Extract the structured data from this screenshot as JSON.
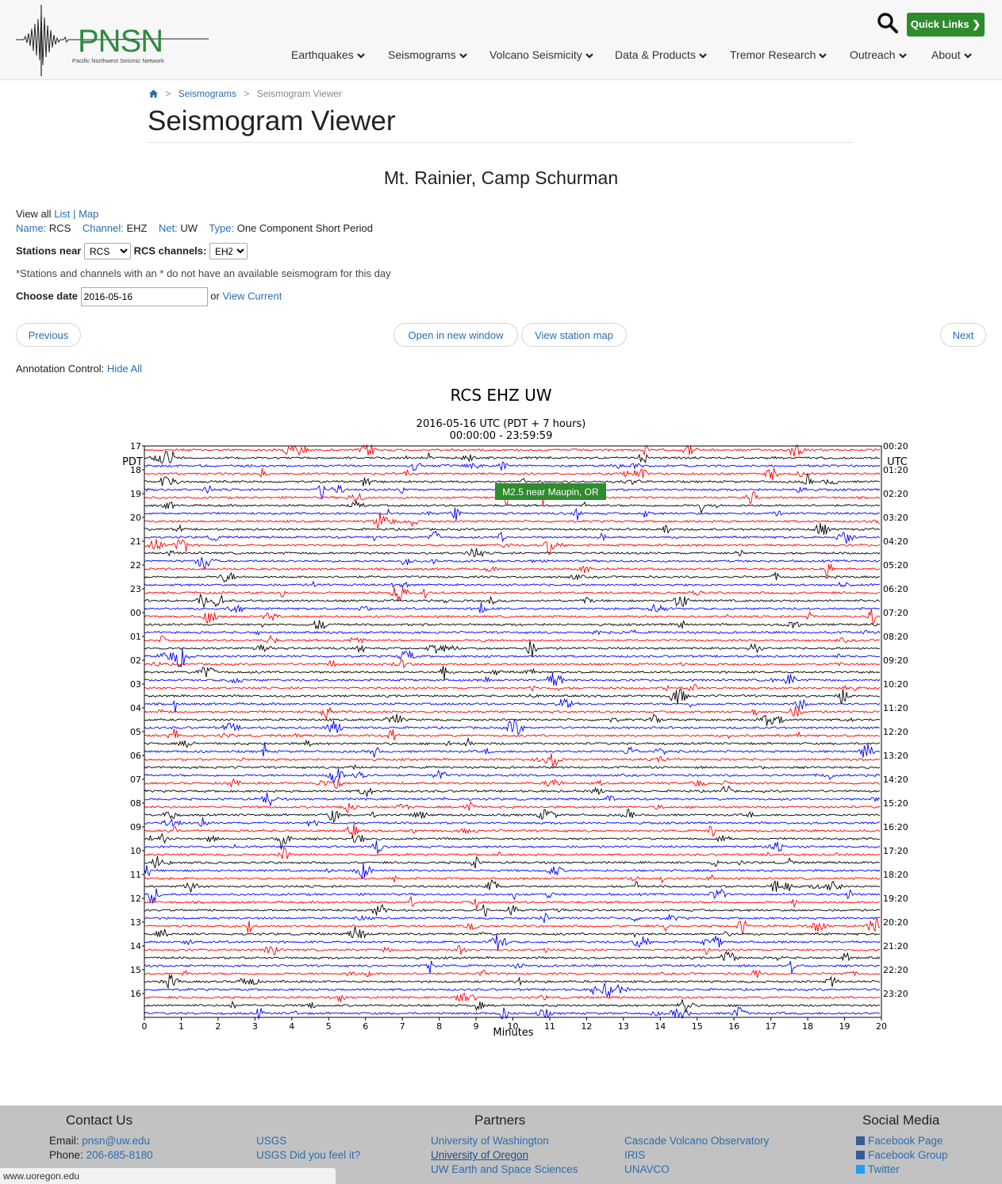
{
  "header": {
    "logo_text": "PNSN",
    "logo_subtitle": "Pacific Northwest Seismic Network",
    "quick_links_label": "Quick Links",
    "nav": [
      "Earthquakes",
      "Seismograms",
      "Volcano Seismicity",
      "Data & Products",
      "Tremor Research",
      "Outreach",
      "About"
    ]
  },
  "breadcrumb": {
    "home_icon": "home-icon",
    "items": [
      "Seismograms",
      "Seismogram Viewer"
    ]
  },
  "page_title": "Seismogram Viewer",
  "station_title": "Mt. Rainier, Camp Schurman",
  "info": {
    "view_all_label": "View all",
    "list_link": "List",
    "pipe": "|",
    "map_link": "Map",
    "name_label": "Name:",
    "name_value": "RCS",
    "channel_label": "Channel:",
    "channel_value": "EHZ",
    "net_label": "Net:",
    "net_value": "UW",
    "type_label": "Type:",
    "type_value": "One Component Short Period",
    "stations_near_label": "Stations near",
    "stations_near_value": "RCS",
    "channels_label": "RCS channels:",
    "channels_value": "EHZ",
    "footnote": "*Stations and channels with an * do not have an available seismogram for this day",
    "choose_date_label": "Choose date",
    "date_value": "2016-05-16",
    "or_label": "or",
    "view_current_link": "View Current"
  },
  "buttons": {
    "previous": "Previous",
    "open_new_window": "Open in new window",
    "view_station_map": "View station map",
    "next": "Next"
  },
  "annotation": {
    "label": "Annotation Control:",
    "hide_all": "Hide All"
  },
  "plot": {
    "title": "RCS EHZ UW",
    "subtitle1": "2016-05-16 UTC (PDT + 7 hours)",
    "subtitle2": "00:00:00 - 23:59:59",
    "left_axis_label": "PDT",
    "right_axis_label": "UTC",
    "xlabel": "Minutes",
    "event_annotation": "M2.5 near Maupin, OR"
  },
  "chart_data": {
    "type": "line",
    "title": "RCS EHZ UW",
    "xlabel": "Minutes",
    "ylabel": "",
    "xlim": [
      0,
      20
    ],
    "x_ticks": [
      "0",
      "1",
      "2",
      "3",
      "4",
      "5",
      "6",
      "7",
      "8",
      "9",
      "10",
      "11",
      "12",
      "13",
      "14",
      "15",
      "16",
      "17",
      "18",
      "19",
      "20"
    ],
    "left_ticks_pdt": [
      "17",
      "18",
      "19",
      "20",
      "21",
      "22",
      "23",
      "00",
      "01",
      "02",
      "03",
      "04",
      "05",
      "06",
      "07",
      "08",
      "09",
      "10",
      "11",
      "12",
      "13",
      "14",
      "15",
      "16"
    ],
    "right_ticks_utc": [
      "00:20",
      "01:20",
      "02:20",
      "03:20",
      "04:20",
      "05:20",
      "06:20",
      "07:20",
      "08:20",
      "09:20",
      "10:20",
      "11:20",
      "12:20",
      "13:20",
      "14:20",
      "15:20",
      "16:20",
      "17:20",
      "18:20",
      "19:20",
      "20:20",
      "21:20",
      "22:20",
      "23:20"
    ],
    "traces_count": 72,
    "trace_colors": [
      "#ff0000",
      "#000000",
      "#0000ff"
    ],
    "annotations": [
      {
        "text": "M2.5 near Maupin, OR",
        "color": "#2e8b2e"
      }
    ]
  },
  "footer": {
    "contact_head": "Contact Us",
    "email_label": "Email:",
    "email_value": "pnsn@uw.edu",
    "phone_label": "Phone:",
    "phone_value": "206-685-8180",
    "partners_head": "Partners",
    "partners_col1": [
      "USGS",
      "USGS Did you feel it?"
    ],
    "partners_col2": [
      "University of Washington",
      "University of Oregon",
      "UW Earth and Space Sciences"
    ],
    "partners_col3": [
      "Cascade Volcano Observatory",
      "IRIS",
      "UNAVCO"
    ],
    "social_head": "Social Media",
    "social": [
      "Facebook Page",
      "Facebook Group",
      "Twitter"
    ]
  },
  "status_bar": "www.uoregon.edu"
}
